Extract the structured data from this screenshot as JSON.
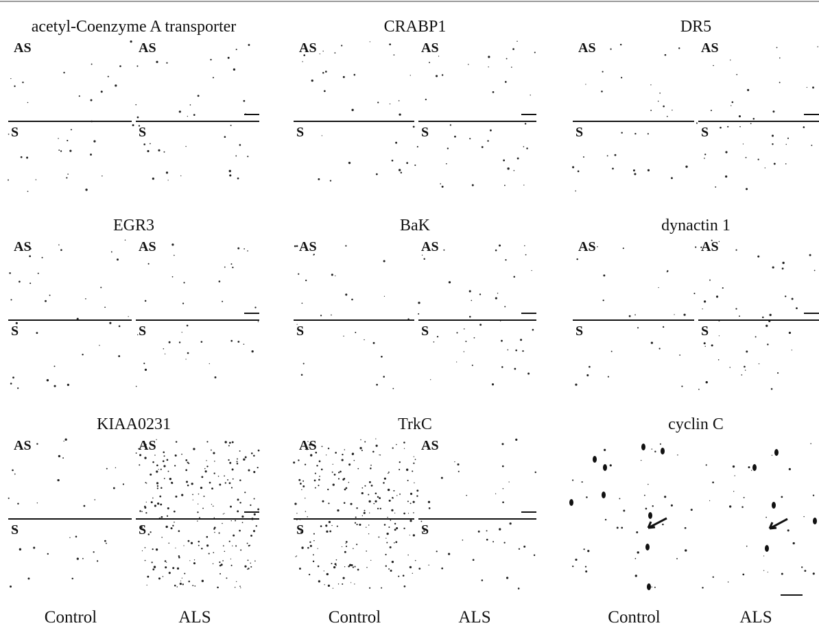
{
  "panels": [
    {
      "title": "acetyl-Coenzyme A transporter",
      "labels": [
        "AS",
        "AS",
        "S",
        "S"
      ]
    },
    {
      "title": "CRABP1",
      "labels": [
        "AS",
        "AS",
        "S",
        "S"
      ]
    },
    {
      "title": "DR5",
      "labels": [
        "AS",
        "AS",
        "S",
        "S"
      ]
    },
    {
      "title": "EGR3",
      "labels": [
        "AS",
        "AS",
        "S",
        "S"
      ]
    },
    {
      "title": "BaK",
      "labels": [
        "AS",
        "AS",
        "S",
        "S"
      ]
    },
    {
      "title": "dynactin 1",
      "labels": [
        "AS",
        "AS",
        "S",
        "S"
      ]
    },
    {
      "title": "KIAA0231",
      "labels": [
        "AS",
        "AS",
        "S",
        "S"
      ]
    },
    {
      "title": "TrkC",
      "labels": [
        "AS",
        "AS",
        "S",
        "S"
      ]
    },
    {
      "title": "cyclin C",
      "labels": []
    }
  ],
  "footer": [
    [
      "Control",
      "ALS"
    ],
    [
      "Control",
      "ALS"
    ],
    [
      "Control",
      "ALS"
    ]
  ]
}
